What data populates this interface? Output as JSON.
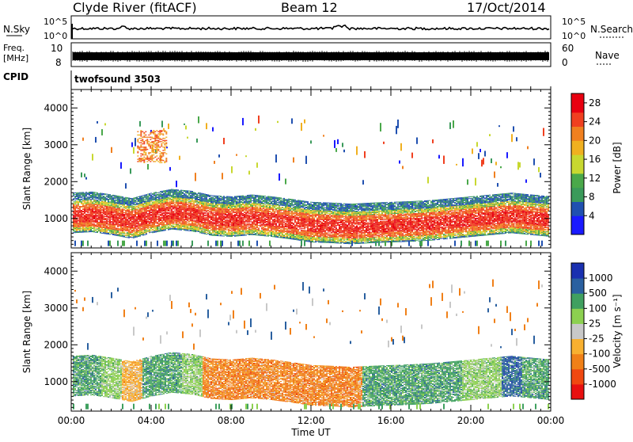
{
  "header": {
    "station": "Clyde River (fitACF)",
    "beam": "Beam 12",
    "date": "17/Oct/2014"
  },
  "noise_panel": {
    "left_label": "N.Sky",
    "right_label": "N.Search",
    "left_ticks": [
      "10^5",
      "10^0"
    ],
    "right_ticks": [
      "10^5",
      "10^0"
    ]
  },
  "freq_panel": {
    "left_label_1": "Freq.",
    "left_label_2": "[MHz]",
    "left_ticks": [
      "10",
      "8"
    ],
    "right_label": "Nave",
    "right_ticks": [
      "60",
      "0"
    ]
  },
  "cpid_panel": {
    "label": "CPID",
    "value": "twofsound 3503"
  },
  "colors": {
    "power_scale": [
      "#1a1aff",
      "#2050b0",
      "#3a9a5a",
      "#4aa84a",
      "#c8d830",
      "#f0b020",
      "#f08020",
      "#f04020",
      "#e80010"
    ],
    "velocity_scale": [
      "#e81010",
      "#f04810",
      "#f08018",
      "#f8b030",
      "#c8c8c8",
      "#8cd050",
      "#40a060",
      "#2a60a0",
      "#1a30b0"
    ]
  },
  "chart_data": [
    {
      "type": "heatmap",
      "name": "power",
      "xlabel": "",
      "ylabel": "Slant Range [km]",
      "x_ticks": [
        "00:00",
        "04:00",
        "08:00",
        "12:00",
        "16:00",
        "20:00",
        "00:00"
      ],
      "xlim_hours": [
        0,
        24
      ],
      "ylim": [
        200,
        4500
      ],
      "y_ticks": [
        1000,
        2000,
        3000,
        4000
      ],
      "colorbar": {
        "label": "Power [dB]",
        "ticks": [
          4,
          8,
          12,
          16,
          20,
          24,
          28
        ],
        "range": [
          0,
          30
        ]
      },
      "band_center_km": [
        1050,
        1080,
        1000,
        900,
        1050,
        1150,
        1100,
        980,
        950,
        1000,
        950,
        880,
        800,
        780,
        750,
        780,
        800,
        820,
        850,
        900,
        950,
        1000,
        1050,
        1000,
        950
      ],
      "band_center_hours": [
        0,
        1,
        2,
        3,
        4,
        5,
        6,
        7,
        8,
        9,
        10,
        11,
        12,
        13,
        14,
        15,
        16,
        17,
        18,
        19,
        20,
        21,
        22,
        23,
        24
      ]
    },
    {
      "type": "heatmap",
      "name": "velocity",
      "xlabel": "Time UT",
      "ylabel": "Slant Range [km]",
      "x_ticks": [
        "00:00",
        "04:00",
        "08:00",
        "12:00",
        "16:00",
        "20:00",
        "00:00"
      ],
      "xlim_hours": [
        0,
        24
      ],
      "ylim": [
        200,
        4500
      ],
      "y_ticks": [
        1000,
        2000,
        3000,
        4000
      ],
      "colorbar": {
        "label": "Velocity [m s⁻¹]",
        "ticks": [
          "1000",
          "500",
          "100",
          "25",
          "-25",
          "-100",
          "-500",
          "-1000"
        ]
      },
      "dominant_velocity_by_hour": [
        100,
        100,
        25,
        -25,
        100,
        100,
        25,
        -100,
        -100,
        -100,
        -100,
        -100,
        -100,
        -100,
        -100,
        100,
        100,
        100,
        100,
        100,
        25,
        25,
        500,
        100,
        100
      ]
    }
  ]
}
